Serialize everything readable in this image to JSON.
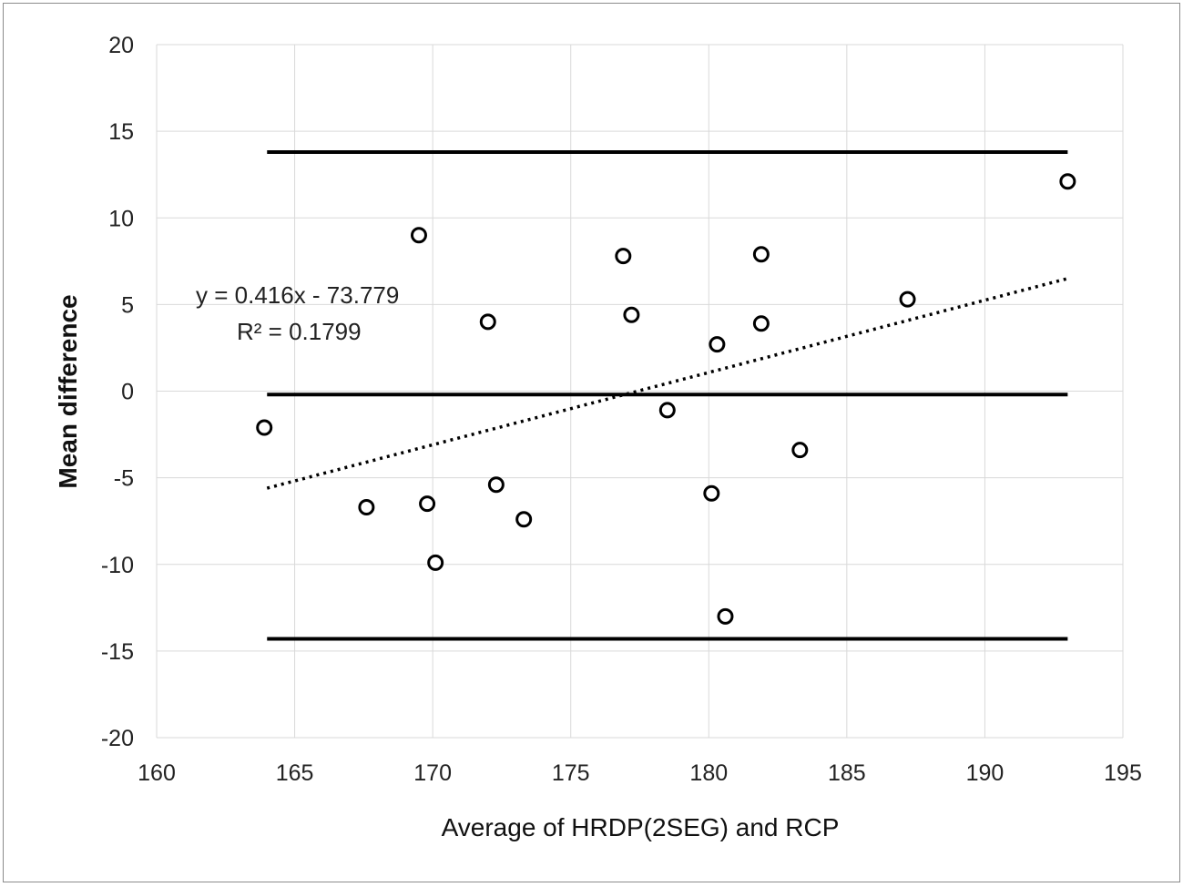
{
  "chart_data": {
    "type": "scatter",
    "title": "",
    "xlabel": "Average of HRDP(2SEG) and RCP",
    "ylabel": "Mean difference",
    "xlim": [
      160,
      195
    ],
    "ylim": [
      -20,
      20
    ],
    "x_ticks": [
      160,
      165,
      170,
      175,
      180,
      185,
      190,
      195
    ],
    "y_ticks": [
      20,
      15,
      10,
      5,
      0,
      -5,
      -10,
      -15,
      -20
    ],
    "grid": true,
    "legend": "none",
    "points": [
      {
        "x": 163.9,
        "y": -2.1
      },
      {
        "x": 167.6,
        "y": -6.7
      },
      {
        "x": 169.5,
        "y": 9.0
      },
      {
        "x": 169.8,
        "y": -6.5
      },
      {
        "x": 170.1,
        "y": -9.9
      },
      {
        "x": 172.0,
        "y": 4.0
      },
      {
        "x": 172.3,
        "y": -5.4
      },
      {
        "x": 173.3,
        "y": -7.4
      },
      {
        "x": 176.9,
        "y": 7.8
      },
      {
        "x": 177.2,
        "y": 4.4
      },
      {
        "x": 178.5,
        "y": -1.1
      },
      {
        "x": 180.1,
        "y": -5.9
      },
      {
        "x": 180.3,
        "y": 2.7
      },
      {
        "x": 180.6,
        "y": -13.0
      },
      {
        "x": 181.9,
        "y": 7.9
      },
      {
        "x": 181.9,
        "y": 3.9
      },
      {
        "x": 183.3,
        "y": -3.4
      },
      {
        "x": 187.2,
        "y": 5.3
      },
      {
        "x": 193.0,
        "y": 12.1
      }
    ],
    "reference_lines": [
      {
        "kind": "upper-limit",
        "y": 13.8,
        "x_range": [
          164.0,
          193.0
        ]
      },
      {
        "kind": "mean",
        "y": -0.2,
        "x_range": [
          164.0,
          193.0
        ]
      },
      {
        "kind": "lower-limit",
        "y": -14.3,
        "x_range": [
          164.0,
          193.0
        ]
      }
    ],
    "trendline": {
      "style": "dotted",
      "x_range": [
        164.0,
        193.0
      ],
      "y_range": [
        -5.6,
        6.5
      ],
      "equation": "y = 0.416x - 73.779",
      "r_squared": "R² = 0.1799"
    },
    "colors": {
      "points": "#000000",
      "lines": "#000000",
      "grid": "#d9d9d9"
    }
  }
}
